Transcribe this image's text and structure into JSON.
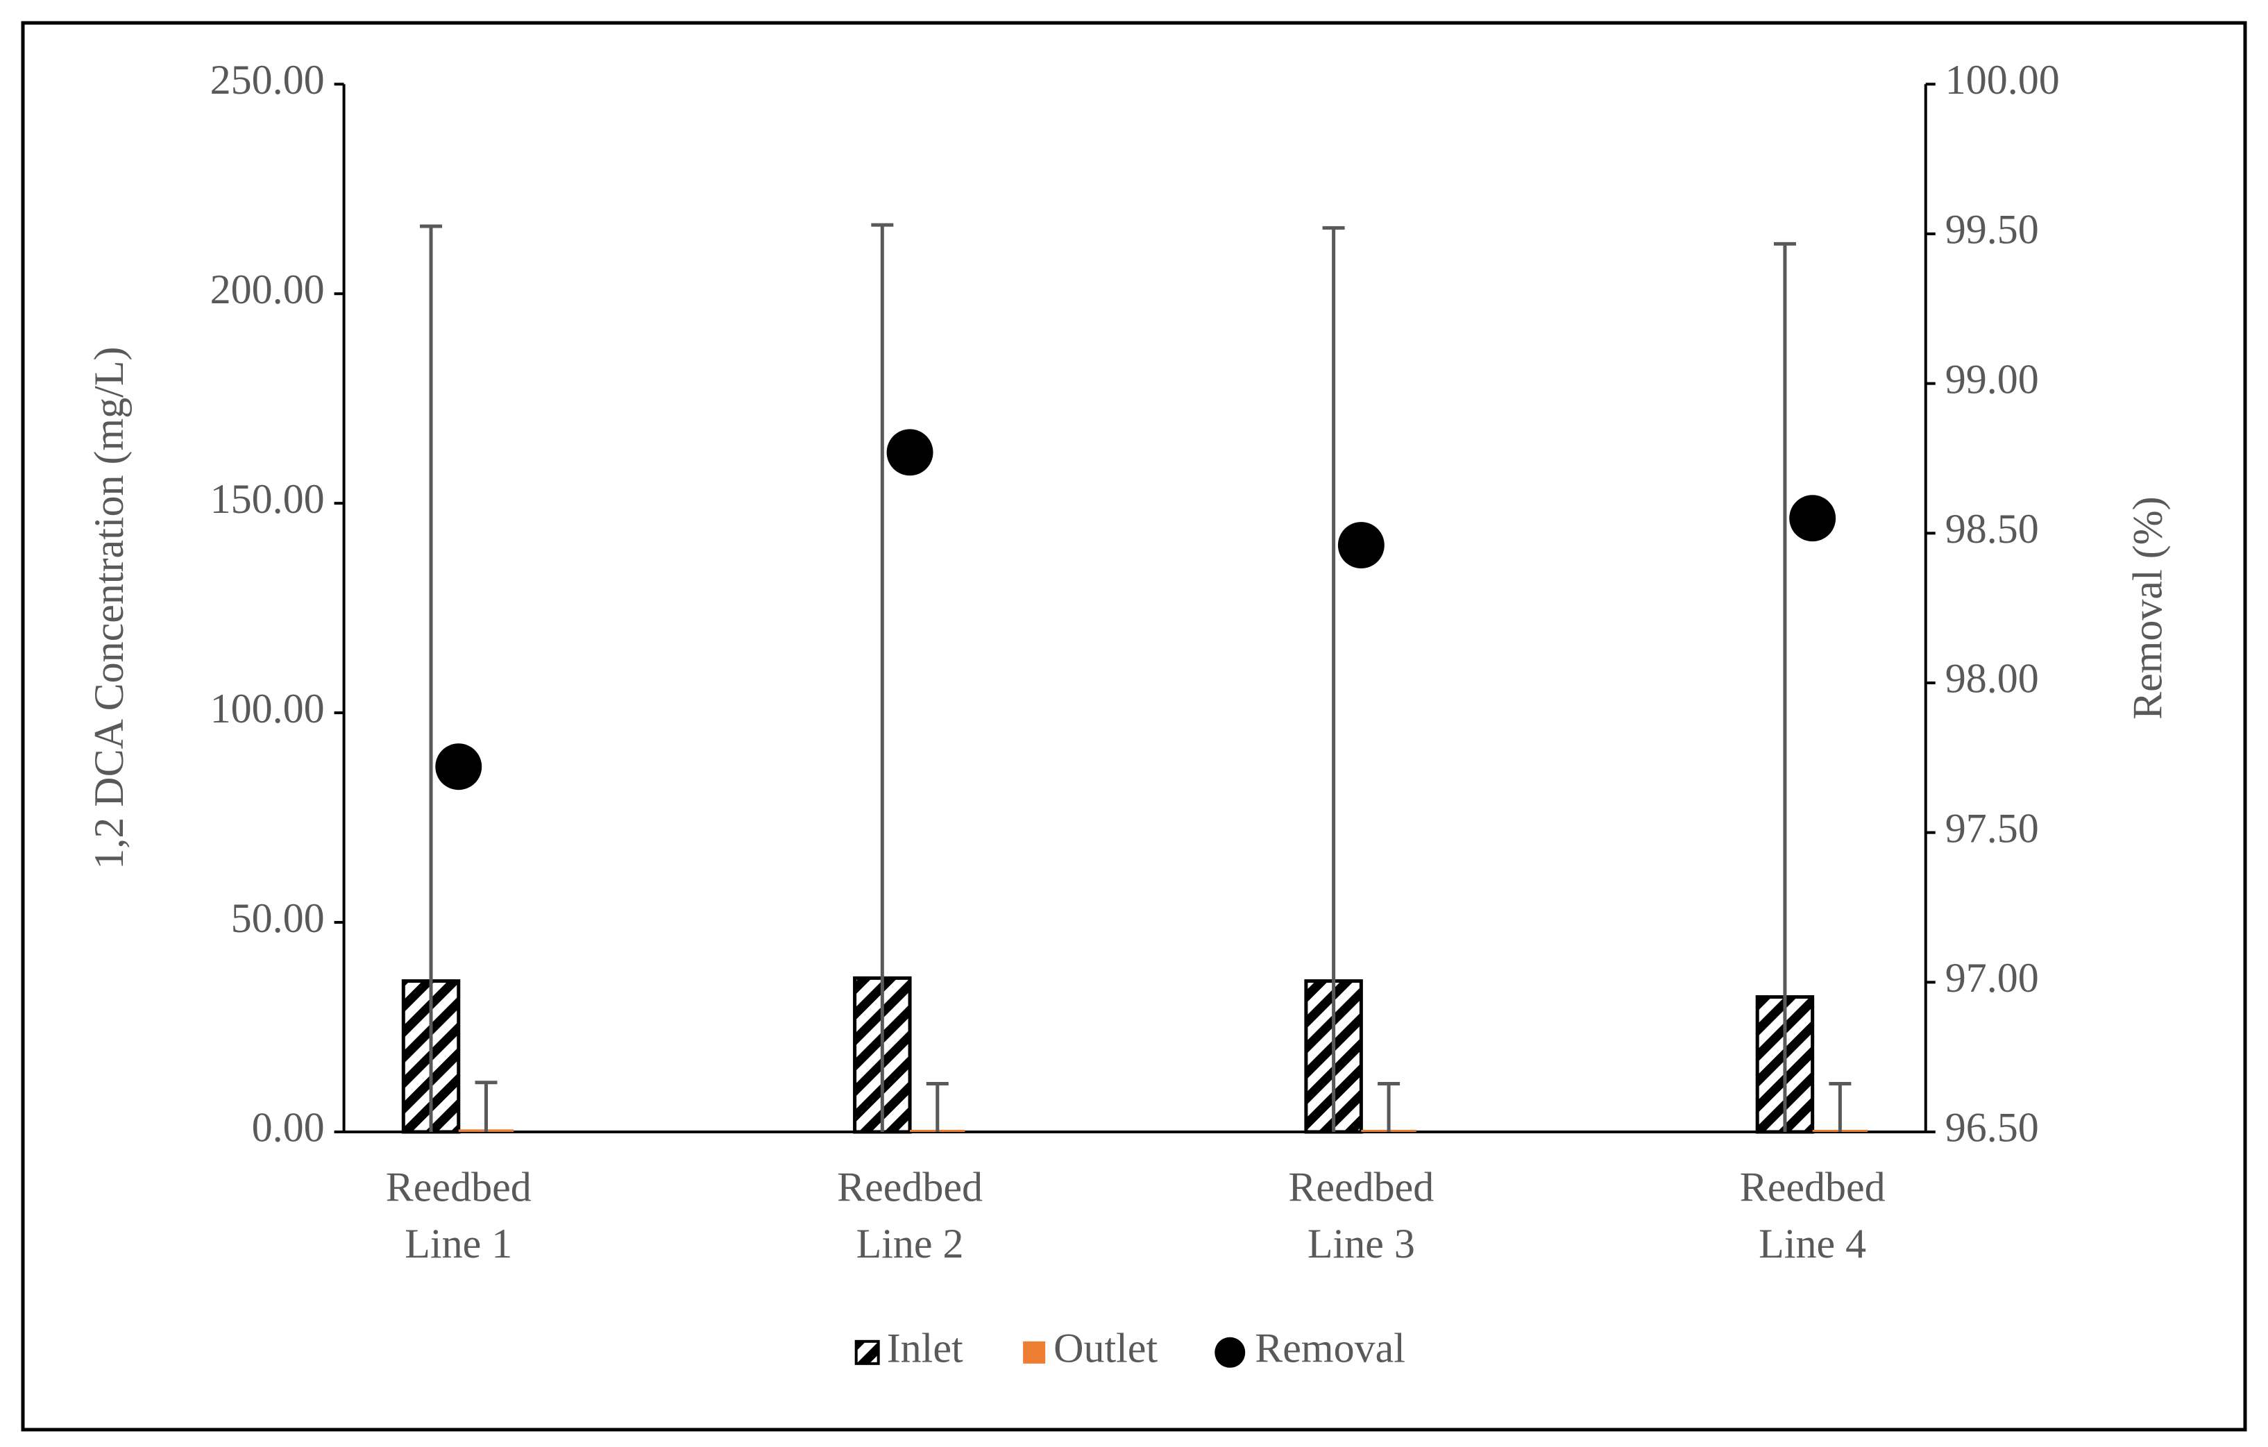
{
  "chart_data": {
    "type": "bar",
    "y_label": "1,2 DCA Concentration (mg/L)",
    "y2_label": "Removal (%)",
    "categories": [
      [
        "Reedbed",
        "Line 1"
      ],
      [
        "Reedbed",
        "Line 2"
      ],
      [
        "Reedbed",
        "Line 3"
      ],
      [
        "Reedbed",
        "Line 4"
      ]
    ],
    "series": [
      {
        "name": "Inlet",
        "type": "bar",
        "color": "#000000",
        "pattern": "hatch",
        "values": [
          36.0,
          36.7,
          36.0,
          32.2
        ],
        "errors": [
          180.1,
          179.7,
          179.7,
          179.7
        ]
      },
      {
        "name": "Outlet",
        "type": "bar",
        "color": "#ed7d31",
        "values": [
          0.6,
          0.5,
          0.5,
          0.5
        ],
        "errors": [
          11.2,
          11.0,
          11.0,
          11.0
        ]
      },
      {
        "name": "Removal",
        "type": "scatter",
        "axis": "y2",
        "color": "#000000",
        "values": [
          97.72,
          98.77,
          98.46,
          98.55
        ]
      }
    ],
    "ylim": [
      0,
      250
    ],
    "yticks": [
      {
        "value": 0,
        "label": "0.00"
      },
      {
        "value": 50,
        "label": "50.00"
      },
      {
        "value": 100,
        "label": "100.00"
      },
      {
        "value": 150,
        "label": "150.00"
      },
      {
        "value": 200,
        "label": "200.00"
      },
      {
        "value": 250,
        "label": "250.00"
      }
    ],
    "y2lim": [
      96.5,
      100
    ],
    "y2ticks": [
      {
        "value": 96.5,
        "label": "96.50"
      },
      {
        "value": 97,
        "label": "97.00"
      },
      {
        "value": 97.5,
        "label": "97.50"
      },
      {
        "value": 98,
        "label": "98.00"
      },
      {
        "value": 98.5,
        "label": "98.50"
      },
      {
        "value": 99,
        "label": "99.00"
      },
      {
        "value": 99.5,
        "label": "99.50"
      },
      {
        "value": 100,
        "label": "100.00"
      }
    ],
    "legend": "bottom"
  }
}
